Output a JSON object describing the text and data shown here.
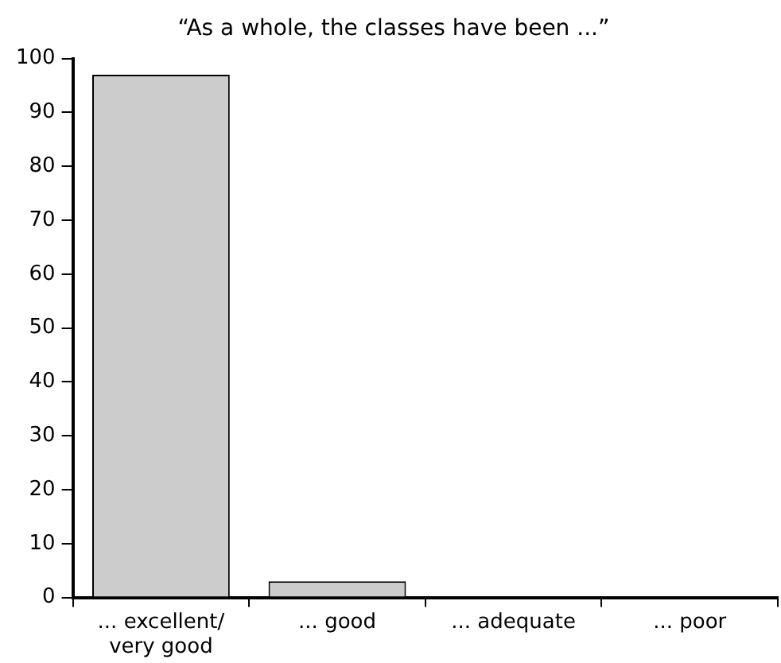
{
  "chart_data": {
    "type": "bar",
    "title": "“As a whole, the classes have been ...”",
    "categories": [
      "... excellent/ very good",
      "... good",
      "... adequate",
      "... poor"
    ],
    "values": [
      97,
      3,
      0,
      0
    ],
    "color": "#cccccc",
    "ylim": [
      0,
      100
    ],
    "yticks": [
      0,
      10,
      20,
      30,
      40,
      50,
      60,
      70,
      80,
      90,
      100
    ],
    "grid": false,
    "legend": false
  }
}
